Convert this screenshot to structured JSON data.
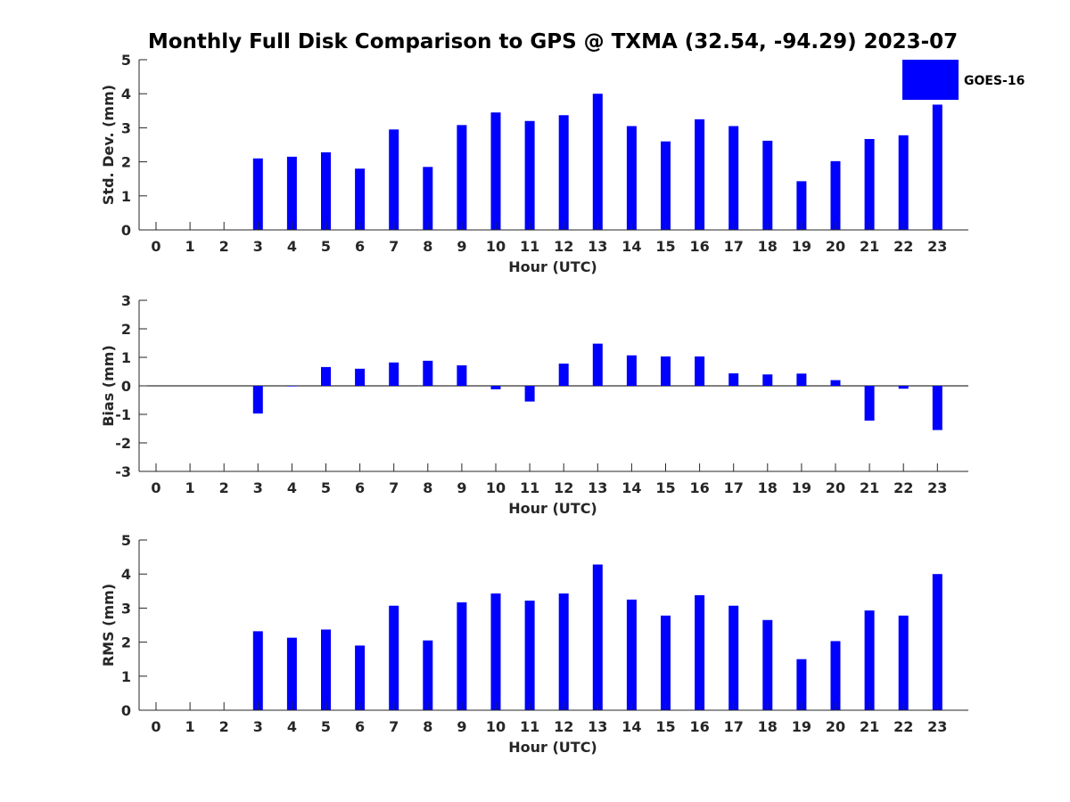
{
  "title": "Monthly Full Disk Comparison to GPS @ TXMA (32.54, -94.29) 2023-07",
  "legend": {
    "label": "GOES-16",
    "color": "#0000ff",
    "placement": "top-right"
  },
  "chart_data": [
    {
      "type": "bar",
      "title": "Monthly Full Disk Comparison to GPS @ TXMA (32.54, -94.29) 2023-07",
      "xlabel": "Hour (UTC)",
      "ylabel": "Std. Dev. (mm)",
      "categories": [
        "0",
        "1",
        "2",
        "3",
        "4",
        "5",
        "6",
        "7",
        "8",
        "9",
        "10",
        "11",
        "12",
        "13",
        "14",
        "15",
        "16",
        "17",
        "18",
        "19",
        "20",
        "21",
        "22",
        "23"
      ],
      "yticks": [
        "0",
        "1",
        "2",
        "3",
        "4",
        "5"
      ],
      "ylim": [
        0,
        5
      ],
      "grid": false,
      "series": [
        {
          "name": "GOES-16",
          "color": "#0000ff",
          "values": [
            null,
            null,
            null,
            2.1,
            2.15,
            2.28,
            1.8,
            2.95,
            1.85,
            3.08,
            3.45,
            3.2,
            3.37,
            4.0,
            3.05,
            2.6,
            3.25,
            3.05,
            2.62,
            1.43,
            2.02,
            2.67,
            2.78,
            3.68
          ]
        }
      ]
    },
    {
      "type": "bar",
      "xlabel": "Hour (UTC)",
      "ylabel": "Bias (mm)",
      "categories": [
        "0",
        "1",
        "2",
        "3",
        "4",
        "5",
        "6",
        "7",
        "8",
        "9",
        "10",
        "11",
        "12",
        "13",
        "14",
        "15",
        "16",
        "17",
        "18",
        "19",
        "20",
        "21",
        "22",
        "23"
      ],
      "yticks": [
        "-3",
        "-2",
        "-1",
        "0",
        "1",
        "2",
        "3"
      ],
      "ylim": [
        -3,
        3
      ],
      "grid": false,
      "series": [
        {
          "name": "GOES-16",
          "color": "#0000ff",
          "values": [
            null,
            null,
            null,
            -0.97,
            -0.02,
            0.66,
            0.6,
            0.82,
            0.88,
            0.72,
            -0.12,
            -0.55,
            0.78,
            1.48,
            1.07,
            1.03,
            1.03,
            0.44,
            0.4,
            0.43,
            0.2,
            -1.22,
            -0.1,
            -1.55
          ]
        }
      ]
    },
    {
      "type": "bar",
      "xlabel": "Hour (UTC)",
      "ylabel": "RMS (mm)",
      "categories": [
        "0",
        "1",
        "2",
        "3",
        "4",
        "5",
        "6",
        "7",
        "8",
        "9",
        "10",
        "11",
        "12",
        "13",
        "14",
        "15",
        "16",
        "17",
        "18",
        "19",
        "20",
        "21",
        "22",
        "23"
      ],
      "yticks": [
        "0",
        "1",
        "2",
        "3",
        "4",
        "5"
      ],
      "ylim": [
        0,
        5
      ],
      "grid": false,
      "series": [
        {
          "name": "GOES-16",
          "color": "#0000ff",
          "values": [
            null,
            null,
            null,
            2.32,
            2.13,
            2.37,
            1.9,
            3.07,
            2.05,
            3.17,
            3.43,
            3.22,
            3.43,
            4.28,
            3.25,
            2.78,
            3.38,
            3.07,
            2.65,
            1.5,
            2.03,
            2.93,
            2.78,
            4.0
          ]
        }
      ]
    }
  ]
}
